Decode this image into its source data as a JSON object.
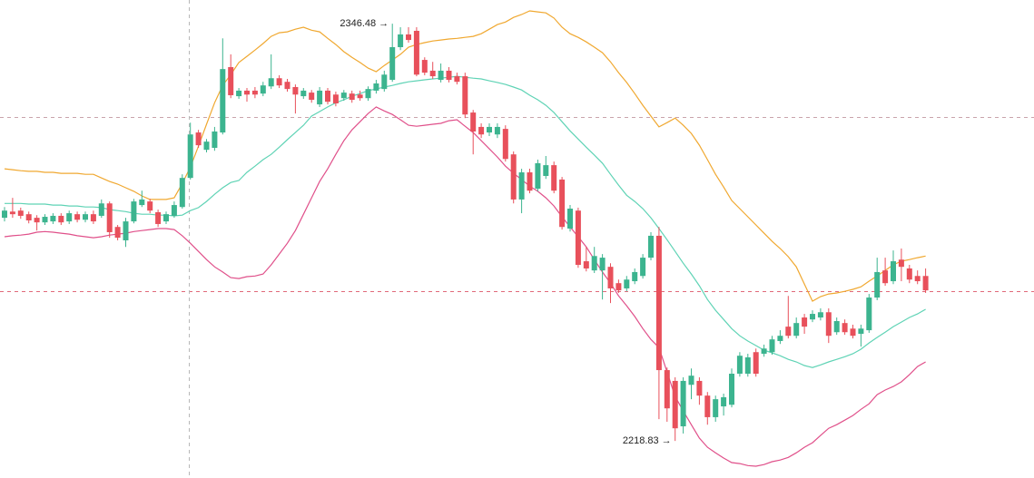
{
  "chart_data": {
    "type": "candlestick",
    "up_color": "#3cb48f",
    "down_color": "#e8505b",
    "open": [
      2287.1,
      2289.0,
      2289.3,
      2288.2,
      2287.1,
      2285.7,
      2286.0,
      2287.7,
      2286.0,
      2288.2,
      2286.5,
      2288.2,
      2287.7,
      2291.5,
      2284.3,
      2280.2,
      2286.0,
      2291.0,
      2292.1,
      2288.8,
      2286.0,
      2287.7,
      2290.4,
      2299.3,
      2313.2,
      2307.9,
      2308.5,
      2313.2,
      2333.2,
      2324.3,
      2326.0,
      2326.0,
      2325.1,
      2327.3,
      2329.8,
      2328.7,
      2327.1,
      2324.3,
      2325.4,
      2321.8,
      2326.0,
      2324.8,
      2323.7,
      2325.1,
      2324.8,
      2323.7,
      2326.0,
      2326.5,
      2329.3,
      2339.3,
      2343.2,
      2344.3,
      2335.4,
      2332.1,
      2329.3,
      2332.1,
      2330.4,
      2330.4,
      2319.3,
      2314.9,
      2313.2,
      2312.6,
      2314.3,
      2306.5,
      2292.7,
      2301.0,
      2296.0,
      2299.9,
      2303.2,
      2298.8,
      2283.8,
      2289.3,
      2273.8,
      2271.0,
      2271.0,
      2272.1,
      2267.1,
      2265.5,
      2267.7,
      2269.3,
      2274.9,
      2281.6,
      2240.5,
      2237.2,
      2223.3,
      2236.0,
      2237.2,
      2232.7,
      2226.1,
      2229.4,
      2229.9,
      2239.4,
      2239.4,
      2246.0,
      2245.5,
      2246.0,
      2249.4,
      2253.8,
      2251.0,
      2256.6,
      2256.0,
      2256.6,
      2258.2,
      2252.1,
      2254.9,
      2253.2,
      2251.6,
      2252.7,
      2262.7,
      2271.0,
      2267.7,
      2274.3,
      2271.6,
      2269.3,
      2269.3
    ],
    "high": [
      2290.4,
      2293.2,
      2290.2,
      2289.0,
      2287.9,
      2288.2,
      2288.5,
      2288.5,
      2289.3,
      2289.0,
      2289.0,
      2289.3,
      2292.7,
      2292.1,
      2284.9,
      2287.1,
      2292.9,
      2295.4,
      2292.9,
      2289.6,
      2289.0,
      2292.1,
      2300.4,
      2316.2,
      2314.0,
      2311.2,
      2314.9,
      2342.0,
      2337.1,
      2326.8,
      2326.8,
      2327.1,
      2328.7,
      2337.1,
      2330.7,
      2329.6,
      2327.9,
      2326.8,
      2326.2,
      2327.1,
      2326.8,
      2325.7,
      2326.2,
      2326.0,
      2326.0,
      2327.3,
      2329.3,
      2332.1,
      2346.48,
      2345.4,
      2345.4,
      2345.4,
      2336.2,
      2334.8,
      2334.3,
      2333.2,
      2331.5,
      2331.5,
      2320.1,
      2316.0,
      2316.0,
      2316.0,
      2315.4,
      2307.4,
      2302.1,
      2302.1,
      2304.9,
      2306.0,
      2304.3,
      2299.6,
      2291.0,
      2290.2,
      2278.2,
      2278.2,
      2276.0,
      2273.2,
      2268.2,
      2269.3,
      2271.6,
      2276.0,
      2282.7,
      2284.3,
      2241.3,
      2238.3,
      2238.3,
      2241.0,
      2238.3,
      2233.8,
      2232.7,
      2233.3,
      2241.0,
      2246.0,
      2245.5,
      2247.1,
      2248.3,
      2251.0,
      2252.7,
      2263.2,
      2256.6,
      2257.7,
      2258.8,
      2259.4,
      2259.4,
      2256.6,
      2256.0,
      2254.4,
      2254.4,
      2263.8,
      2274.9,
      2274.9,
      2277.1,
      2277.7,
      2272.7,
      2271.0,
      2271.6
    ],
    "low": [
      2286.0,
      2287.1,
      2286.8,
      2285.4,
      2283.2,
      2284.9,
      2285.2,
      2284.9,
      2285.2,
      2285.7,
      2285.7,
      2285.2,
      2287.1,
      2281.0,
      2280.2,
      2278.2,
      2285.4,
      2290.4,
      2288.5,
      2284.3,
      2285.2,
      2287.1,
      2289.9,
      2298.8,
      2308.5,
      2307.1,
      2307.6,
      2312.6,
      2323.7,
      2323.5,
      2322.6,
      2323.7,
      2324.3,
      2326.5,
      2326.8,
      2325.7,
      2319.0,
      2323.5,
      2322.3,
      2321.0,
      2321.8,
      2321.2,
      2322.9,
      2322.3,
      2322.9,
      2322.9,
      2325.1,
      2325.7,
      2328.7,
      2338.4,
      2340.7,
      2330.4,
      2330.7,
      2329.6,
      2328.5,
      2328.5,
      2327.9,
      2317.6,
      2306.5,
      2311.5,
      2312.1,
      2311.5,
      2304.3,
      2291.5,
      2288.5,
      2294.6,
      2295.2,
      2299.0,
      2294.6,
      2283.5,
      2282.9,
      2271.8,
      2270.7,
      2270.2,
      2262.1,
      2261.0,
      2264.1,
      2264.6,
      2266.8,
      2268.5,
      2274.1,
      2225.5,
      2224.7,
      2218.83,
      2221.1,
      2231.6,
      2229.9,
      2223.8,
      2224.7,
      2226.6,
      2229.1,
      2238.5,
      2238.5,
      2238.5,
      2244.6,
      2245.2,
      2248.5,
      2250.2,
      2250.2,
      2251.6,
      2255.2,
      2255.7,
      2248.8,
      2251.3,
      2251.3,
      2250.2,
      2247.7,
      2251.9,
      2261.9,
      2266.3,
      2266.8,
      2267.7,
      2267.1,
      2266.8,
      2264.1
    ],
    "close": [
      2289.3,
      2288.2,
      2287.7,
      2286.3,
      2285.7,
      2287.4,
      2287.7,
      2285.7,
      2288.5,
      2286.5,
      2288.2,
      2286.0,
      2291.5,
      2282.7,
      2281.0,
      2286.0,
      2292.1,
      2292.7,
      2289.3,
      2285.2,
      2288.2,
      2291.0,
      2299.3,
      2312.6,
      2309.3,
      2310.4,
      2313.5,
      2332.6,
      2324.6,
      2326.0,
      2324.8,
      2324.8,
      2327.6,
      2329.8,
      2327.6,
      2326.5,
      2324.8,
      2326.0,
      2323.2,
      2326.0,
      2322.6,
      2322.1,
      2325.4,
      2323.2,
      2323.7,
      2326.5,
      2328.2,
      2330.9,
      2339.3,
      2343.2,
      2341.5,
      2330.9,
      2331.5,
      2330.4,
      2332.1,
      2329.3,
      2328.7,
      2318.7,
      2313.5,
      2312.6,
      2314.9,
      2314.9,
      2305.1,
      2292.7,
      2301.0,
      2295.4,
      2303.8,
      2303.2,
      2295.4,
      2284.3,
      2289.9,
      2272.7,
      2271.6,
      2275.4,
      2274.9,
      2265.5,
      2264.9,
      2268.2,
      2270.5,
      2274.9,
      2281.6,
      2240.5,
      2228.8,
      2222.7,
      2237.2,
      2238.8,
      2232.7,
      2226.1,
      2231.6,
      2232.2,
      2239.4,
      2244.9,
      2244.4,
      2239.4,
      2247.1,
      2249.9,
      2251.0,
      2251.0,
      2254.9,
      2253.8,
      2257.7,
      2258.2,
      2251.0,
      2255.5,
      2252.1,
      2251.0,
      2253.2,
      2262.7,
      2270.5,
      2267.1,
      2273.8,
      2272.1,
      2268.2,
      2267.7,
      2264.9
    ],
    "bands": [
      {
        "color": "#f0a830",
        "values": [
          2302.1,
          2301.8,
          2301.5,
          2301.3,
          2301.3,
          2301.0,
          2301.0,
          2300.7,
          2300.7,
          2300.7,
          2300.4,
          2300.4,
          2299.3,
          2298.2,
          2297.4,
          2296.3,
          2295.2,
          2293.8,
          2292.7,
          2292.7,
          2292.7,
          2293.2,
          2297.6,
          2302.6,
          2309.0,
          2315.7,
          2322.3,
          2327.6,
          2330.9,
          2334.6,
          2336.5,
          2338.4,
          2340.4,
          2342.6,
          2343.7,
          2344.0,
          2344.8,
          2345.4,
          2344.5,
          2344.0,
          2342.0,
          2340.1,
          2337.9,
          2336.2,
          2334.6,
          2332.9,
          2331.8,
          2333.7,
          2335.4,
          2337.1,
          2339.3,
          2340.1,
          2340.7,
          2341.2,
          2341.5,
          2341.8,
          2342.0,
          2342.3,
          2342.6,
          2343.4,
          2344.8,
          2346.2,
          2347.0,
          2348.4,
          2349.3,
          2350.4,
          2350.1,
          2349.8,
          2348.2,
          2345.4,
          2343.4,
          2342.3,
          2340.9,
          2339.3,
          2337.6,
          2334.8,
          2331.5,
          2328.5,
          2325.1,
          2321.5,
          2318.2,
          2314.9,
          2316.2,
          2317.6,
          2315.4,
          2312.9,
          2309.3,
          2304.9,
          2300.4,
          2296.5,
          2292.4,
          2289.9,
          2287.4,
          2284.9,
          2282.4,
          2279.9,
          2277.7,
          2275.2,
          2272.1,
          2266.8,
          2261.6,
          2263.0,
          2263.8,
          2264.1,
          2264.6,
          2265.2,
          2266.0,
          2267.7,
          2269.3,
          2271.0,
          2272.7,
          2273.8,
          2274.3,
          2274.9,
          2275.4
        ]
      },
      {
        "color": "#5fd3b5",
        "values": [
          2291.5,
          2291.5,
          2291.5,
          2291.3,
          2291.3,
          2291.3,
          2291.0,
          2291.0,
          2290.7,
          2290.7,
          2290.4,
          2290.4,
          2290.2,
          2289.6,
          2289.3,
          2289.0,
          2288.5,
          2288.2,
          2288.2,
          2287.9,
          2287.9,
          2287.7,
          2287.9,
          2289.3,
          2290.2,
          2292.1,
          2294.3,
          2296.3,
          2297.9,
          2298.5,
          2301.0,
          2302.9,
          2304.9,
          2306.5,
          2308.7,
          2311.0,
          2313.2,
          2315.4,
          2318.2,
          2319.6,
          2321.0,
          2322.3,
          2323.2,
          2324.3,
          2325.1,
          2326.0,
          2326.5,
          2327.1,
          2327.6,
          2328.2,
          2328.7,
          2329.0,
          2329.3,
          2329.6,
          2329.8,
          2330.1,
          2330.4,
          2330.1,
          2329.8,
          2329.6,
          2329.0,
          2328.5,
          2327.9,
          2327.1,
          2326.2,
          2324.6,
          2323.2,
          2321.5,
          2319.3,
          2316.5,
          2313.7,
          2311.2,
          2308.7,
          2306.3,
          2303.8,
          2300.4,
          2297.1,
          2294.0,
          2292.1,
          2289.9,
          2287.1,
          2283.8,
          2280.4,
          2276.8,
          2273.2,
          2269.9,
          2266.3,
          2262.1,
          2258.8,
          2256.0,
          2253.2,
          2251.0,
          2249.4,
          2248.0,
          2246.6,
          2245.8,
          2244.9,
          2243.8,
          2243.0,
          2241.9,
          2241.3,
          2242.1,
          2243.0,
          2243.8,
          2244.6,
          2245.5,
          2246.9,
          2248.8,
          2250.5,
          2252.1,
          2253.8,
          2255.2,
          2256.6,
          2257.7,
          2259.1
        ]
      },
      {
        "color": "#e0508a",
        "values": [
          2281.3,
          2281.6,
          2281.8,
          2282.1,
          2282.7,
          2282.9,
          2282.7,
          2282.4,
          2282.1,
          2281.6,
          2281.3,
          2281.0,
          2281.3,
          2281.8,
          2282.1,
          2282.4,
          2282.9,
          2283.2,
          2283.5,
          2283.8,
          2283.8,
          2283.5,
          2281.6,
          2279.3,
          2276.8,
          2274.3,
          2272.1,
          2270.5,
          2268.8,
          2268.5,
          2269.1,
          2269.3,
          2269.9,
          2272.7,
          2276.0,
          2279.3,
          2283.2,
          2288.2,
          2293.2,
          2298.2,
          2302.1,
          2306.5,
          2310.7,
          2314.0,
          2316.5,
          2319.0,
          2321.0,
          2319.8,
          2318.7,
          2317.1,
          2315.4,
          2315.1,
          2315.4,
          2315.7,
          2316.0,
          2316.8,
          2317.1,
          2315.1,
          2313.2,
          2310.7,
          2308.2,
          2305.7,
          2302.9,
          2300.7,
          2298.8,
          2296.8,
          2295.2,
          2293.2,
          2290.7,
          2287.4,
          2284.3,
          2281.3,
          2278.2,
          2274.3,
          2270.5,
          2267.1,
          2263.2,
          2260.2,
          2256.9,
          2253.2,
          2249.9,
          2247.4,
          2239.9,
          2232.4,
          2228.0,
          2223.8,
          2219.7,
          2216.9,
          2215.2,
          2213.6,
          2212.2,
          2211.9,
          2211.3,
          2211.1,
          2211.6,
          2212.5,
          2213.0,
          2213.8,
          2215.2,
          2216.9,
          2218.3,
          2220.5,
          2222.7,
          2223.8,
          2225.2,
          2226.6,
          2228.5,
          2230.2,
          2233.0,
          2234.4,
          2235.5,
          2236.9,
          2239.1,
          2241.6,
          2243.0
        ]
      }
    ],
    "annotations": [
      {
        "label": "2346.48 →",
        "value": 2346.48
      },
      {
        "label": "2218.83 →",
        "value": 2218.83
      }
    ]
  }
}
